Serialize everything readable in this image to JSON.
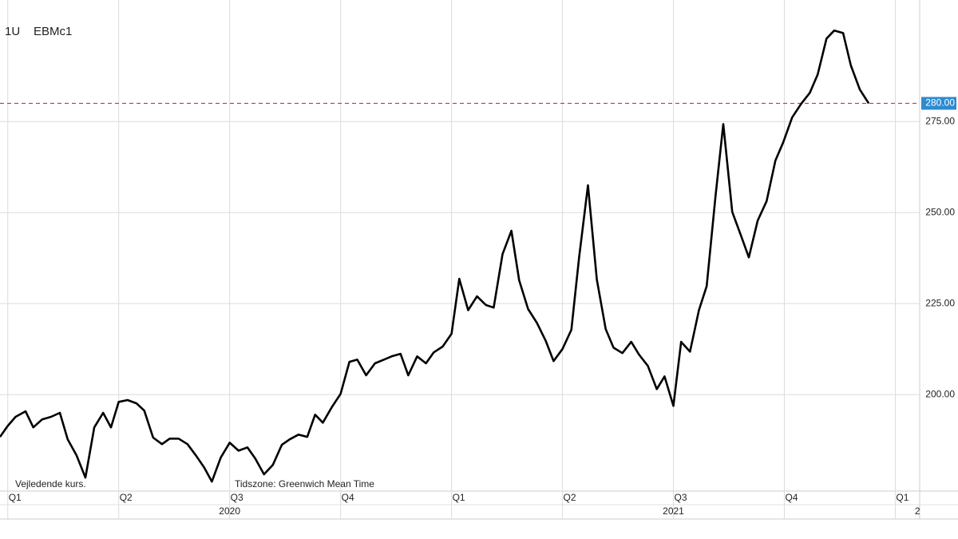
{
  "chart_data": {
    "type": "line",
    "header": [
      "1U",
      "EBMc1"
    ],
    "notes": [
      "Vejledende kurs.",
      "Tidszone: Greenwich Mean Time"
    ],
    "x": [
      -0.07,
      0.0,
      0.07,
      0.16,
      0.23,
      0.31,
      0.39,
      0.47,
      0.54,
      0.62,
      0.7,
      0.78,
      0.86,
      0.93,
      1.0,
      1.08,
      1.16,
      1.23,
      1.31,
      1.39,
      1.46,
      1.54,
      1.62,
      1.7,
      1.77,
      1.84,
      1.92,
      2.0,
      2.08,
      2.16,
      2.23,
      2.31,
      2.39,
      2.47,
      2.54,
      2.62,
      2.7,
      2.77,
      2.84,
      2.92,
      3.0,
      3.08,
      3.15,
      3.23,
      3.31,
      3.39,
      3.46,
      3.54,
      3.61,
      3.69,
      3.77,
      3.84,
      3.92,
      4.0,
      4.07,
      4.15,
      4.23,
      4.31,
      4.38,
      4.46,
      4.54,
      4.61,
      4.69,
      4.77,
      4.85,
      4.92,
      5.0,
      5.08,
      5.15,
      5.23,
      5.31,
      5.39,
      5.46,
      5.54,
      5.62,
      5.69,
      5.77,
      5.85,
      5.92,
      6.0,
      6.07,
      6.15,
      6.23,
      6.3,
      6.38,
      6.45,
      6.53,
      6.61,
      6.68,
      6.76,
      6.84,
      6.92,
      6.99,
      7.07,
      7.15,
      7.23,
      7.3,
      7.38,
      7.45,
      7.53,
      7.6,
      7.68,
      7.76
    ],
    "series": [
      {
        "name": "EBMc1",
        "color": "#000000",
        "values": [
          188.4,
          191.4,
          193.9,
          195.4,
          191.0,
          193.2,
          193.9,
          195.0,
          187.7,
          183.3,
          177.2,
          191.0,
          195.0,
          191.0,
          198.0,
          198.5,
          197.6,
          195.6,
          188.2,
          186.4,
          187.9,
          187.9,
          186.4,
          183.1,
          180.0,
          176.1,
          182.7,
          186.8,
          184.6,
          185.5,
          182.5,
          178.1,
          180.7,
          186.2,
          187.7,
          189.0,
          188.4,
          194.5,
          192.3,
          196.5,
          200.2,
          209.0,
          209.6,
          205.3,
          208.6,
          209.6,
          210.5,
          211.2,
          205.3,
          210.5,
          208.6,
          211.6,
          213.2,
          216.7,
          231.8,
          223.2,
          227.0,
          224.6,
          223.9,
          238.6,
          245.0,
          231.4,
          223.5,
          219.7,
          214.7,
          209.2,
          212.5,
          217.8,
          237.7,
          257.5,
          231.6,
          218.0,
          212.9,
          211.4,
          214.5,
          211.0,
          207.9,
          201.5,
          205.0,
          196.9,
          214.5,
          211.8,
          223.2,
          229.8,
          254.6,
          274.3,
          250.2,
          243.6,
          237.7,
          247.8,
          253.1,
          264.3,
          269.3,
          276.1,
          279.8,
          282.9,
          287.9,
          297.8,
          300.0,
          299.3,
          290.4,
          283.8,
          280.0
        ]
      }
    ],
    "price_line": {
      "value": 280,
      "label": "280.00",
      "color": "#d9342b",
      "label_color": "#2e8bd0"
    },
    "xlim": [
      -0.07,
      8.22
    ],
    "ylim": [
      173.5,
      302.9
    ],
    "yticks": [
      {
        "value": 200,
        "label": "200.00"
      },
      {
        "value": 225,
        "label": "225.00"
      },
      {
        "value": 250,
        "label": "250.00"
      },
      {
        "value": 275,
        "label": "275.00"
      }
    ],
    "xticks": [
      {
        "value": 0,
        "label": "Q1"
      },
      {
        "value": 1,
        "label": "Q2"
      },
      {
        "value": 2,
        "label": "Q3"
      },
      {
        "value": 3,
        "label": "Q4"
      },
      {
        "value": 4,
        "label": "Q1"
      },
      {
        "value": 5,
        "label": "Q2"
      },
      {
        "value": 6,
        "label": "Q3"
      },
      {
        "value": 7,
        "label": "Q4"
      },
      {
        "value": 8,
        "label": "Q1"
      }
    ],
    "year_ticks": [
      {
        "value": 2,
        "label": "2020"
      },
      {
        "value": 6,
        "label": "2021"
      },
      {
        "value": 8.2,
        "label": "2"
      }
    ],
    "grid": true
  }
}
